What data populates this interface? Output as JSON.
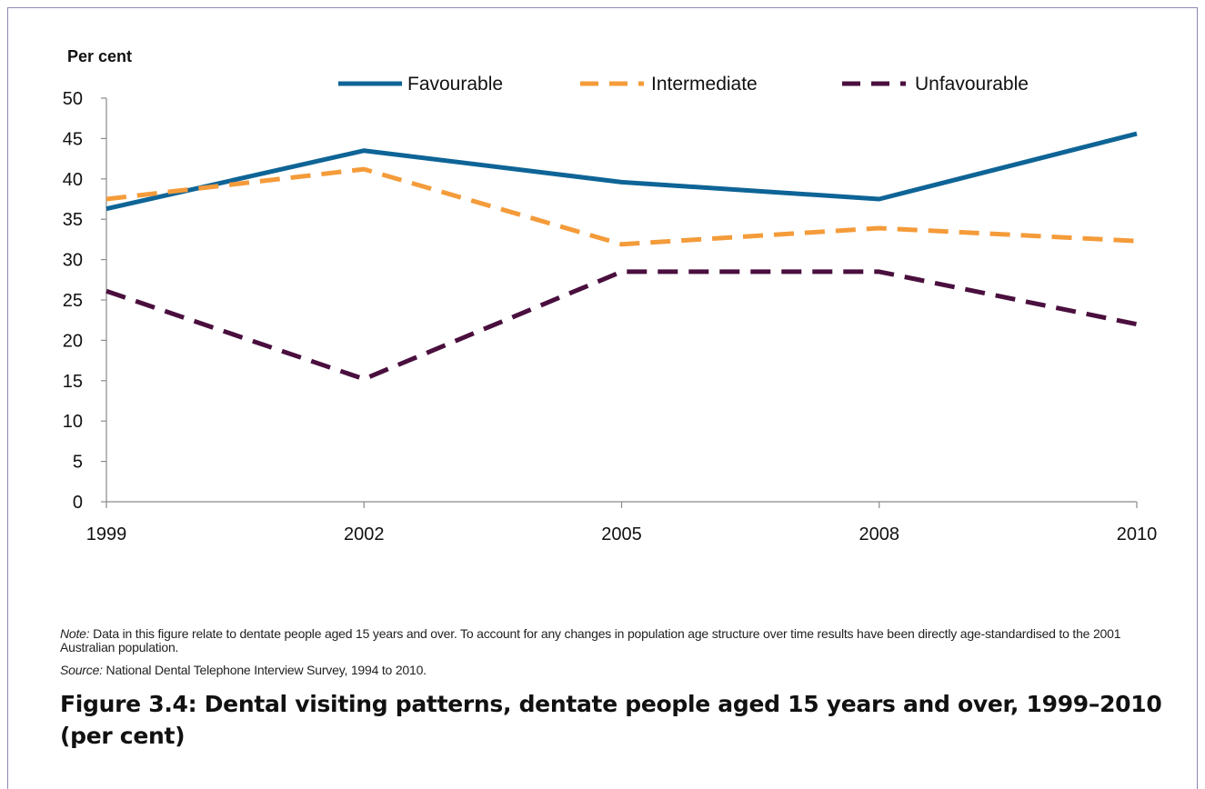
{
  "chart_data": {
    "type": "line",
    "ylabel": "Per cent",
    "xlabel": "",
    "categories": [
      "1999",
      "2002",
      "2005",
      "2008",
      "2010"
    ],
    "ylim": [
      0,
      50
    ],
    "yticks": [
      0,
      5,
      10,
      15,
      20,
      25,
      30,
      35,
      40,
      45,
      50
    ],
    "grid": false,
    "legend_position": "top",
    "series": [
      {
        "name": "Favourable",
        "values": [
          36.3,
          43.5,
          39.6,
          37.5,
          45.6
        ],
        "color": "#0e6496",
        "dash": "solid"
      },
      {
        "name": "Intermediate",
        "values": [
          37.5,
          41.2,
          31.9,
          33.9,
          32.3
        ],
        "color": "#f49b3a",
        "dash": "dashed"
      },
      {
        "name": "Unfavourable",
        "values": [
          26.1,
          15.2,
          28.5,
          28.5,
          22.0
        ],
        "color": "#4a0f3e",
        "dash": "dashed"
      }
    ]
  },
  "note": {
    "note_label": "Note:",
    "note_text": " Data in this figure relate to dentate people aged 15 years and over. To account for any changes in population age structure over time results have been directly age-standardised to the 2001 Australian population.",
    "source_label": "Source:",
    "source_text": " National Dental Telephone Interview Survey, 1994 to 2010."
  },
  "caption": "Figure 3.4: Dental visiting patterns, dentate people aged 15 years and over, 1999–2010 (per cent)"
}
